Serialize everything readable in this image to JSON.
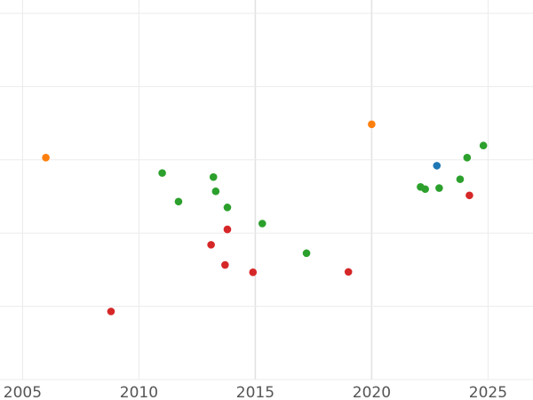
{
  "chart_data": {
    "type": "scatter",
    "title": "",
    "xlabel": "",
    "ylabel": "",
    "xlim": [
      2004.6,
      2026.8
    ],
    "ylim": [
      0,
      100
    ],
    "x_ticks": [
      2005,
      2010,
      2015,
      2020,
      2025
    ],
    "x_tick_labels": [
      "2005",
      "2010",
      "2015",
      "2020",
      "2025"
    ],
    "y_gridlines": [
      0,
      20,
      40,
      60,
      80,
      100
    ],
    "grid": true,
    "legend": "none",
    "series": [
      {
        "color": "#1f77b4",
        "points": [
          {
            "x": 2022.8,
            "y": 58.4
          }
        ]
      },
      {
        "color": "#ff7f0e",
        "points": [
          {
            "x": 2006.0,
            "y": 60.6
          },
          {
            "x": 2020.0,
            "y": 69.7
          }
        ]
      },
      {
        "color": "#2ca02c",
        "points": [
          {
            "x": 2011.0,
            "y": 56.4
          },
          {
            "x": 2011.7,
            "y": 48.6
          },
          {
            "x": 2013.2,
            "y": 55.3
          },
          {
            "x": 2013.3,
            "y": 51.4
          },
          {
            "x": 2013.8,
            "y": 47.0
          },
          {
            "x": 2015.3,
            "y": 42.6
          },
          {
            "x": 2017.2,
            "y": 34.5
          },
          {
            "x": 2022.1,
            "y": 52.6
          },
          {
            "x": 2022.3,
            "y": 52.0
          },
          {
            "x": 2022.9,
            "y": 52.3
          },
          {
            "x": 2023.8,
            "y": 54.7
          },
          {
            "x": 2024.1,
            "y": 60.6
          },
          {
            "x": 2024.8,
            "y": 63.9
          }
        ]
      },
      {
        "color": "#d62728",
        "points": [
          {
            "x": 2008.8,
            "y": 18.6
          },
          {
            "x": 2013.1,
            "y": 36.8
          },
          {
            "x": 2013.7,
            "y": 31.3
          },
          {
            "x": 2013.8,
            "y": 41.0
          },
          {
            "x": 2014.9,
            "y": 29.3
          },
          {
            "x": 2019.0,
            "y": 29.4
          },
          {
            "x": 2024.2,
            "y": 50.3
          }
        ]
      }
    ]
  }
}
